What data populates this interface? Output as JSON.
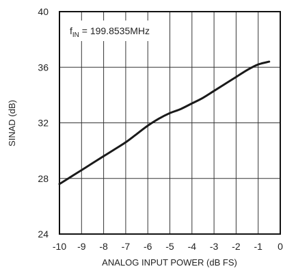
{
  "chart_data": {
    "type": "line",
    "title": "",
    "xlabel": "ANALOG INPUT POWER (dB FS)",
    "ylabel": "SINAD (dB)",
    "xlim": [
      -10,
      0
    ],
    "ylim": [
      24,
      40
    ],
    "xticks": [
      "-10",
      "-9",
      "-8",
      "-7",
      "-6",
      "-5",
      "-4",
      "-3",
      "-2",
      "-1",
      "0"
    ],
    "yticks": [
      "24",
      "28",
      "32",
      "36",
      "40"
    ],
    "grid": true,
    "annotation": {
      "prefix": "f",
      "subscript": "IN",
      "suffix": " = 199.8535MHz"
    },
    "series": [
      {
        "x": [
          -10,
          -9.5,
          -9,
          -8.5,
          -8,
          -7.5,
          -7,
          -6.5,
          -6,
          -5.5,
          -5,
          -4.5,
          -4,
          -3.5,
          -3,
          -2.5,
          -2,
          -1.5,
          -1,
          -0.5
        ],
        "y": [
          27.6,
          28.1,
          28.6,
          29.1,
          29.6,
          30.1,
          30.6,
          31.2,
          31.8,
          32.3,
          32.7,
          33.0,
          33.4,
          33.8,
          34.3,
          34.8,
          35.3,
          35.8,
          36.2,
          36.4
        ],
        "color": "#1a1a1a"
      }
    ]
  }
}
